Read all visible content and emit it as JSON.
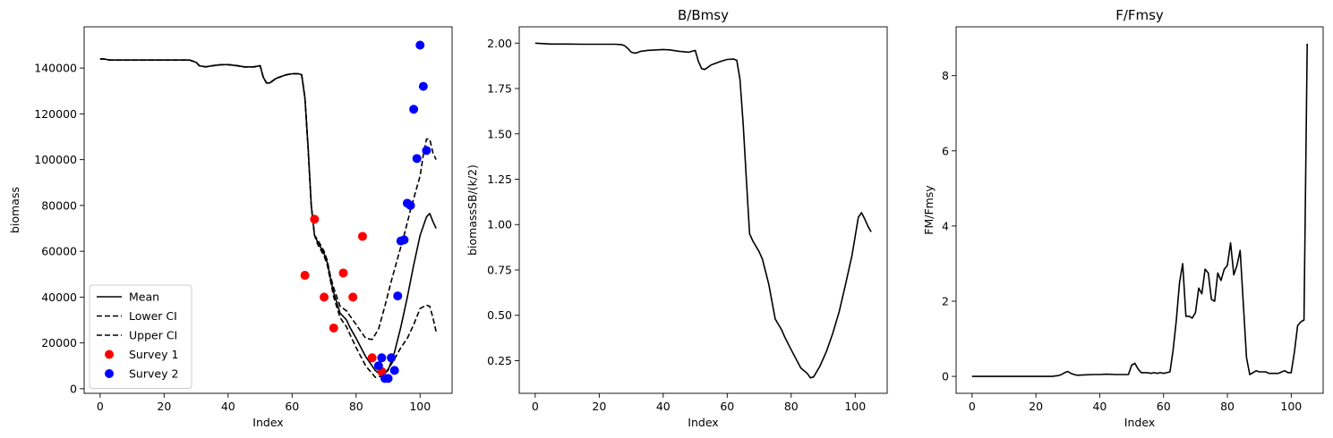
{
  "chart_data": [
    {
      "type": "line",
      "title": "",
      "xlabel": "Index",
      "ylabel": "biomass",
      "xlim": [
        -5,
        110
      ],
      "ylim": [
        -2000,
        158000
      ],
      "xticks": [
        0,
        20,
        40,
        60,
        80,
        100
      ],
      "xtick_labels": [
        "0",
        "20",
        "40",
        "60",
        "80",
        "100"
      ],
      "yticks": [
        0,
        20000,
        40000,
        60000,
        80000,
        100000,
        120000,
        140000
      ],
      "ytick_labels": [
        "0",
        "20000",
        "40000",
        "60000",
        "80000",
        "100000",
        "120000",
        "140000"
      ],
      "legend_position": "lower-left",
      "series": [
        {
          "name": "Mean",
          "kind": "line",
          "style": "solid",
          "color": "#000000",
          "x": [
            0,
            1,
            3,
            8,
            15,
            20,
            25,
            28,
            30,
            31,
            33,
            35,
            38,
            40,
            43,
            45,
            48,
            50,
            51,
            52,
            53,
            55,
            58,
            60,
            62,
            63,
            64,
            65,
            66,
            67,
            68,
            70,
            71,
            72,
            73,
            75,
            77,
            78,
            80,
            83,
            86,
            88,
            90,
            92,
            94,
            96,
            98,
            100,
            102,
            103,
            104,
            105
          ],
          "y": [
            144000,
            144000,
            143500,
            143500,
            143500,
            143500,
            143500,
            143500,
            142500,
            141000,
            140500,
            141000,
            141500,
            141500,
            141000,
            140500,
            140500,
            141000,
            136000,
            133500,
            133500,
            135500,
            137000,
            137500,
            137500,
            137000,
            127000,
            105000,
            80000,
            67000,
            64000,
            59000,
            55000,
            48000,
            42000,
            33000,
            30000,
            27000,
            22000,
            14000,
            8000,
            5500,
            8000,
            16000,
            27000,
            40000,
            54000,
            67000,
            75000,
            76500,
            73000,
            70000
          ]
        },
        {
          "name": "Lower CI",
          "kind": "line",
          "style": "dashed",
          "color": "#000000",
          "x": [
            0,
            1,
            3,
            8,
            15,
            20,
            25,
            28,
            30,
            31,
            33,
            35,
            38,
            40,
            43,
            45,
            48,
            50,
            51,
            52,
            53,
            55,
            58,
            60,
            62,
            63,
            64,
            65,
            66,
            67,
            68,
            70,
            71,
            72,
            73,
            75,
            77,
            78,
            80,
            83,
            86,
            88,
            90,
            92,
            94,
            96,
            98,
            100,
            102,
            103,
            104,
            105
          ],
          "y": [
            144000,
            144000,
            143500,
            143500,
            143500,
            143500,
            143500,
            143500,
            142500,
            141000,
            140500,
            141000,
            141500,
            141500,
            141000,
            140500,
            140500,
            141000,
            136000,
            133500,
            133500,
            135500,
            137000,
            137500,
            137500,
            137000,
            127000,
            105000,
            80000,
            67000,
            63000,
            58000,
            54000,
            47000,
            40000,
            31000,
            27000,
            24000,
            18000,
            10000,
            5000,
            5500,
            8500,
            13000,
            18000,
            22000,
            28000,
            35000,
            36500,
            36000,
            31000,
            25000
          ]
        },
        {
          "name": "Upper CI",
          "kind": "line",
          "style": "dashed",
          "color": "#000000",
          "x": [
            0,
            1,
            3,
            8,
            15,
            20,
            25,
            28,
            30,
            31,
            33,
            35,
            38,
            40,
            43,
            45,
            48,
            50,
            51,
            52,
            53,
            55,
            58,
            60,
            62,
            63,
            64,
            65,
            66,
            67,
            68,
            70,
            71,
            72,
            73,
            75,
            77,
            78,
            80,
            83,
            85,
            87,
            89,
            91,
            93,
            95,
            97,
            99,
            100,
            101,
            102,
            103,
            104,
            105
          ],
          "y": [
            144000,
            144000,
            143500,
            143500,
            143500,
            143500,
            143500,
            143500,
            142500,
            141000,
            140500,
            141000,
            141500,
            141500,
            141000,
            140500,
            140500,
            141000,
            136000,
            133500,
            133500,
            135500,
            137000,
            137500,
            137500,
            137000,
            127000,
            105000,
            80000,
            67000,
            65000,
            60000,
            56000,
            49000,
            44000,
            36000,
            34000,
            32000,
            28000,
            22000,
            21500,
            26000,
            36000,
            47000,
            57000,
            67000,
            78000,
            88000,
            93000,
            102000,
            109000,
            109000,
            103000,
            100000
          ]
        },
        {
          "name": "Survey 1",
          "kind": "scatter",
          "color": "#ff0000",
          "x": [
            64,
            67,
            70,
            73,
            76,
            79,
            82,
            85,
            88
          ],
          "y": [
            49500,
            74000,
            40000,
            26500,
            50500,
            40000,
            66500,
            13500,
            7500
          ]
        },
        {
          "name": "Survey 2",
          "kind": "scatter",
          "color": "#0000ff",
          "x": [
            87,
            88,
            89,
            90,
            91,
            92,
            93,
            94,
            95,
            96,
            97,
            98,
            99,
            100,
            101,
            102
          ],
          "y": [
            10000,
            13500,
            4500,
            4500,
            13500,
            8000,
            40500,
            64500,
            65000,
            81000,
            80000,
            122000,
            100500,
            150000,
            132000,
            104000
          ]
        }
      ]
    },
    {
      "type": "line",
      "title": "B/Bmsy",
      "xlabel": "Index",
      "ylabel": "biomassSB/(k/2)",
      "xlim": [
        -5,
        110
      ],
      "ylim": [
        0.07,
        2.09
      ],
      "xticks": [
        0,
        20,
        40,
        60,
        80,
        100
      ],
      "xtick_labels": [
        "0",
        "20",
        "40",
        "60",
        "80",
        "100"
      ],
      "yticks": [
        0.25,
        0.5,
        0.75,
        1.0,
        1.25,
        1.5,
        1.75,
        2.0
      ],
      "ytick_labels": [
        "0.25",
        "0.50",
        "0.75",
        "1.00",
        "1.25",
        "1.50",
        "1.75",
        "2.00"
      ],
      "series": [
        {
          "name": "",
          "kind": "line",
          "style": "solid",
          "color": "#000000",
          "x": [
            0,
            2,
            5,
            10,
            15,
            20,
            25,
            27,
            28,
            29,
            30,
            31,
            32,
            33,
            35,
            38,
            40,
            42,
            45,
            48,
            50,
            51,
            52,
            53,
            55,
            58,
            60,
            62,
            63,
            64,
            65,
            66,
            67,
            68,
            70,
            71,
            72,
            73,
            75,
            77,
            78,
            80,
            83,
            85,
            86,
            87,
            89,
            91,
            93,
            95,
            97,
            99,
            101,
            102,
            103,
            104,
            105
          ],
          "y": [
            2.0,
            1.998,
            1.995,
            1.995,
            1.994,
            1.994,
            1.994,
            1.992,
            1.985,
            1.97,
            1.95,
            1.945,
            1.948,
            1.955,
            1.96,
            1.963,
            1.965,
            1.963,
            1.955,
            1.95,
            1.96,
            1.9,
            1.86,
            1.855,
            1.88,
            1.9,
            1.91,
            1.912,
            1.905,
            1.8,
            1.55,
            1.25,
            0.95,
            0.91,
            0.85,
            0.81,
            0.74,
            0.67,
            0.48,
            0.42,
            0.38,
            0.31,
            0.21,
            0.18,
            0.155,
            0.16,
            0.22,
            0.3,
            0.4,
            0.52,
            0.67,
            0.83,
            1.04,
            1.065,
            1.03,
            0.99,
            0.96
          ]
        }
      ]
    },
    {
      "type": "line",
      "title": "F/Fmsy",
      "xlabel": "Index",
      "ylabel": "FM/Fmsy",
      "xlim": [
        -5,
        110
      ],
      "ylim": [
        -0.45,
        9.3
      ],
      "xticks": [
        0,
        20,
        40,
        60,
        80,
        100
      ],
      "xtick_labels": [
        "0",
        "20",
        "40",
        "60",
        "80",
        "100"
      ],
      "yticks": [
        0,
        2,
        4,
        6,
        8
      ],
      "ytick_labels": [
        "0",
        "2",
        "4",
        "6",
        "8"
      ],
      "series": [
        {
          "name": "",
          "kind": "line",
          "style": "solid",
          "color": "#000000",
          "x": [
            0,
            5,
            10,
            15,
            20,
            25,
            27,
            28,
            29,
            30,
            31,
            32,
            33,
            35,
            38,
            40,
            42,
            45,
            47,
            48,
            49,
            50,
            51,
            52,
            53,
            55,
            56,
            57,
            58,
            59,
            60,
            61,
            62,
            63,
            64,
            65,
            66,
            67,
            68,
            69,
            70,
            71,
            72,
            73,
            74,
            75,
            76,
            77,
            78,
            79,
            80,
            81,
            82,
            83,
            84,
            85,
            86,
            87,
            88,
            89,
            90,
            91,
            92,
            93,
            94,
            95,
            96,
            97,
            98,
            99,
            100,
            101,
            102,
            103,
            104,
            105
          ],
          "y": [
            0,
            0,
            0,
            0,
            0,
            0,
            0.02,
            0.05,
            0.1,
            0.13,
            0.08,
            0.05,
            0.03,
            0.04,
            0.05,
            0.05,
            0.06,
            0.05,
            0.05,
            0.05,
            0.05,
            0.3,
            0.35,
            0.2,
            0.1,
            0.1,
            0.08,
            0.1,
            0.08,
            0.1,
            0.08,
            0.1,
            0.12,
            0.7,
            1.5,
            2.5,
            3.0,
            1.6,
            1.6,
            1.55,
            1.7,
            2.35,
            2.2,
            2.85,
            2.75,
            2.05,
            2.0,
            2.75,
            2.55,
            2.85,
            2.95,
            3.55,
            2.7,
            2.95,
            3.35,
            1.9,
            0.5,
            0.05,
            0.1,
            0.15,
            0.12,
            0.12,
            0.12,
            0.08,
            0.08,
            0.08,
            0.08,
            0.12,
            0.15,
            0.1,
            0.1,
            0.65,
            1.35,
            1.45,
            1.5,
            8.85
          ]
        }
      ]
    }
  ]
}
